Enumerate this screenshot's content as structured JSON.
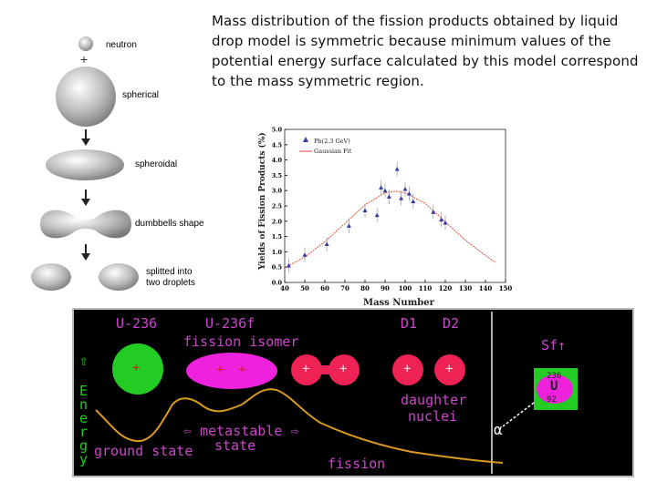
{
  "caption": "Mass distribution of the fission products obtained by liquid drop model is symmetric because minimum values of the potential energy surface calculated by this model correspond to the mass symmetric region.",
  "stages": {
    "neutron": "neutron",
    "plus": "+",
    "spherical": "spherical",
    "spheroidal": "spheroidal",
    "dumbbells": "dumbbells shape",
    "splitted_1": "splitted into",
    "splitted_2": "two droplets"
  },
  "chart_data": {
    "type": "scatter",
    "ylabel": "Yields of Fission Products (%)",
    "xlabel": "Mass Number",
    "xlim": [
      40,
      150
    ],
    "ylim": [
      0,
      5.0
    ],
    "xticks": [
      "40",
      "50",
      "60",
      "70",
      "80",
      "90",
      "100",
      "110",
      "120",
      "130",
      "140",
      "150"
    ],
    "yticks": [
      "0.0",
      "0.5",
      "1.0",
      "1.5",
      "2.0",
      "2.5",
      "3.0",
      "3.5",
      "4.0",
      "4.5",
      "5.0"
    ],
    "legend": {
      "series_1": "Pb(2.3 GeV)",
      "series_2": "Gaussian Fit",
      "placement": "top-left"
    },
    "series": [
      {
        "name": "Pb(2.3 GeV)",
        "x": [
          42,
          50,
          61,
          72,
          80,
          86,
          88,
          90,
          92,
          96,
          98,
          100,
          102,
          104,
          114,
          118,
          120
        ],
        "y": [
          0.55,
          0.9,
          1.25,
          1.85,
          2.35,
          2.2,
          3.1,
          3.0,
          2.8,
          3.7,
          2.75,
          3.05,
          2.9,
          2.65,
          2.3,
          2.05,
          1.95
        ]
      },
      {
        "name": "Gaussian Fit",
        "x": [
          40,
          50,
          60,
          70,
          80,
          90,
          95,
          100,
          110,
          120,
          130,
          140,
          145
        ],
        "y": [
          0.48,
          0.83,
          1.33,
          1.93,
          2.53,
          2.93,
          2.98,
          2.93,
          2.58,
          1.98,
          1.38,
          0.88,
          0.65
        ]
      }
    ],
    "grid": false
  },
  "panel": {
    "u236": "U-236",
    "u236f": "U-236f",
    "fission_isomer": "fission isomer",
    "d1": "D1",
    "d2": "D2",
    "energy_letters": [
      "E",
      "n",
      "e",
      "r",
      "g",
      "y"
    ],
    "arrow_up": "⇧",
    "ground_state": "ground state",
    "metastable": "⇦ metastable ⇨",
    "state": "state",
    "fission": "fission",
    "daughter": "daughter",
    "nuclei": "nuclei",
    "sf": "Sf↑",
    "box_top": "236",
    "box_mid": "U",
    "box_bot": "92",
    "alpha": "α",
    "plus": "+",
    "colors": {
      "green": "#22cc22",
      "magenta": "#ee22dd",
      "red": "#ee2255",
      "curve": "#d99a20",
      "text": "#cc44cc",
      "gray": "#b0b0b0"
    }
  }
}
